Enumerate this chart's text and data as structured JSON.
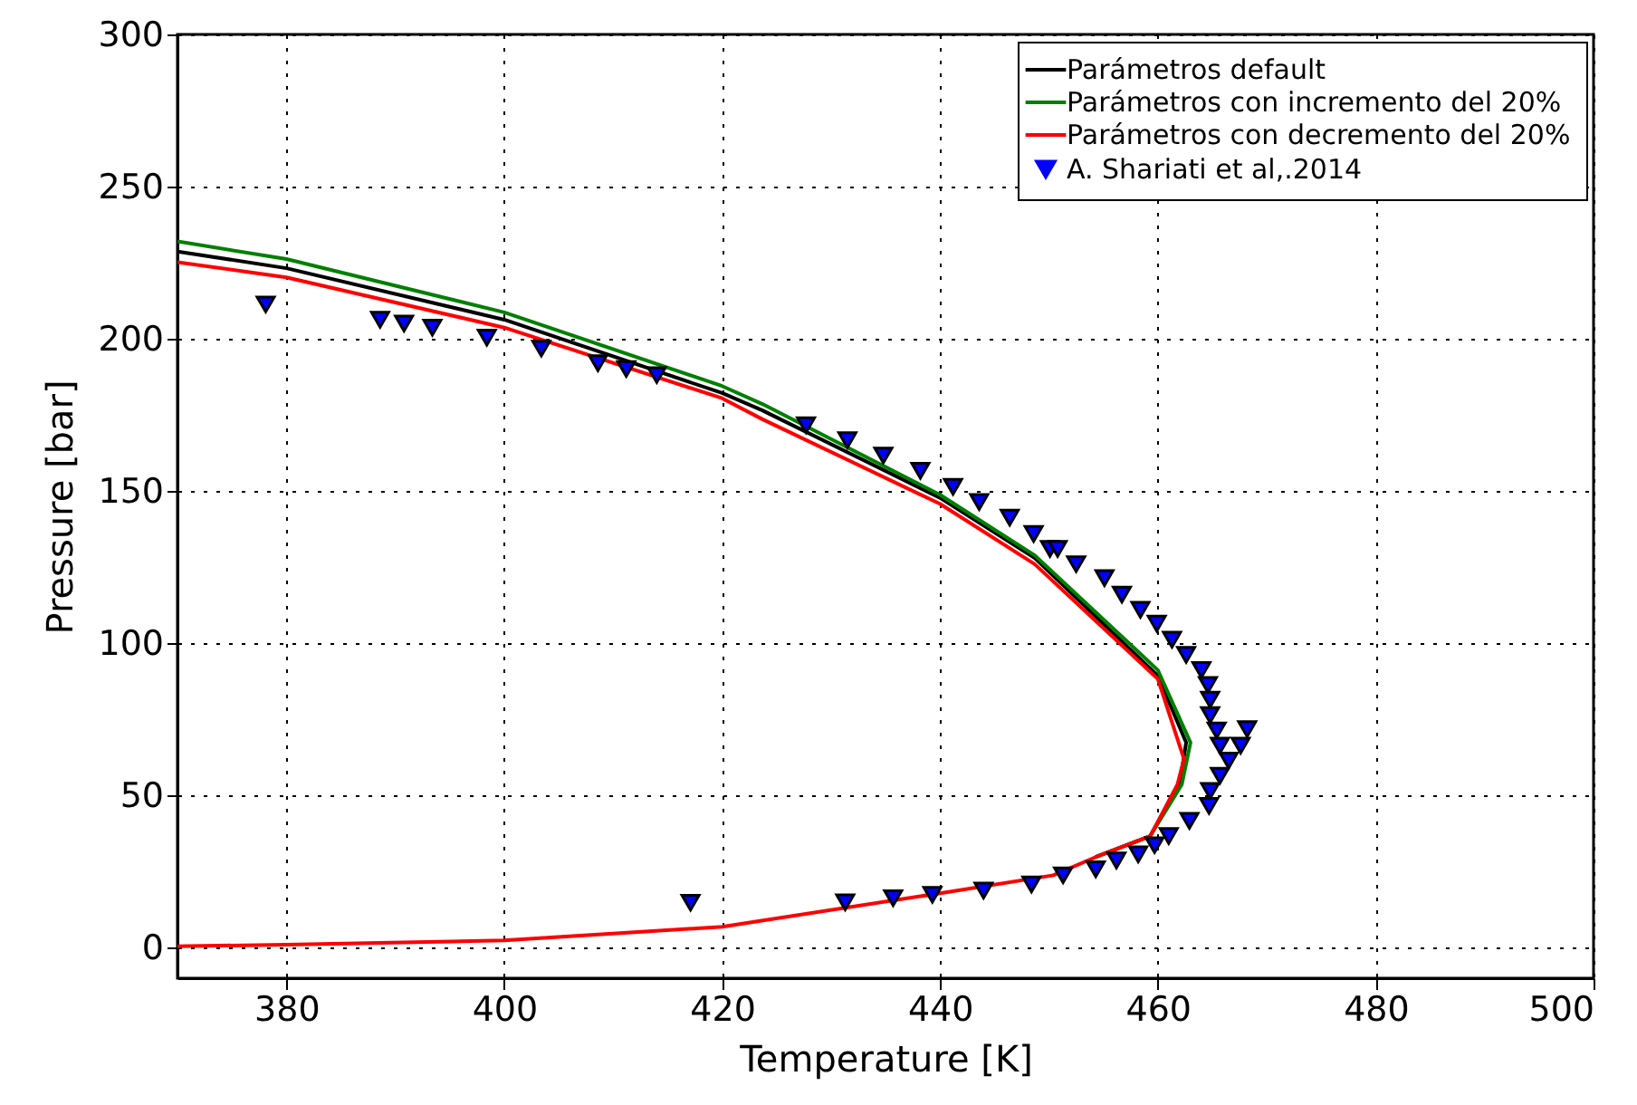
{
  "chart_data": {
    "type": "line",
    "xlabel": "Temperature [K]",
    "ylabel": "Pressure [bar]",
    "xlim": [
      370,
      500
    ],
    "ylim": [
      -10,
      300
    ],
    "xticks": [
      380,
      400,
      420,
      440,
      460,
      480,
      500
    ],
    "yticks": [
      0,
      50,
      100,
      150,
      200,
      250,
      300
    ],
    "grid": true,
    "legend": "top right",
    "series": [
      {
        "name": "Parámetros default",
        "color": "#000000",
        "x": [
          370,
          380,
          400,
          420,
          423.7,
          440,
          448.7,
          460,
          462.6,
          462,
          459.3,
          454.3
        ],
        "values": [
          228.7,
          223.2,
          206.3,
          182.2,
          176.5,
          147.8,
          128,
          89.3,
          67.4,
          53.6,
          36.7,
          29.8
        ]
      },
      {
        "name": "Parámetros con incremento del 20%",
        "color": "#008000",
        "x": [
          370,
          380,
          400,
          420,
          423.7,
          440,
          448.7,
          460,
          463,
          462.2,
          459.3,
          454.3
        ],
        "values": [
          232,
          226.2,
          208.7,
          184.5,
          178.6,
          148.8,
          128.9,
          91.2,
          67.4,
          53.6,
          36.7,
          29.8
        ]
      },
      {
        "name": "Parámetros con decremento del 20%",
        "color": "#ff0000",
        "x": [
          370,
          380,
          400,
          420,
          423.7,
          440,
          448.7,
          460,
          462.4,
          461.8,
          459.3,
          454.3,
          450.4,
          440,
          420,
          400,
          380,
          370
        ],
        "values": [
          225.2,
          220.2,
          203.7,
          180.5,
          173.6,
          145.8,
          126,
          88.3,
          62,
          53.6,
          36.7,
          29.8,
          23.8,
          17.9,
          6.9,
          2.4,
          1.0,
          0.5
        ]
      },
      {
        "name": "A. Shariati et al,.2014",
        "type": "scatter",
        "marker": "triangle",
        "color": "#0000ff",
        "x": [
          378.1,
          388.6,
          390.8,
          393.4,
          398.4,
          403.4,
          408.6,
          411.2,
          414,
          427.7,
          431.5,
          434.8,
          438.2,
          441.2,
          443.6,
          446.4,
          448.6,
          450.1,
          450.8,
          452.5,
          455.1,
          456.7,
          458.4,
          459.9,
          461.3,
          462.6,
          464,
          464.6,
          464.8,
          464.8,
          465.4,
          465.7,
          468.2,
          467.6,
          466.5,
          465.7,
          464.8,
          464.7,
          462.9,
          461,
          459.7,
          458.2,
          456.2,
          454.3,
          451.3,
          448.4,
          444,
          439.3,
          435.7,
          431.3,
          417.1
        ],
        "values": [
          211.3,
          206.3,
          205,
          203.7,
          200.4,
          196.8,
          192,
          190.1,
          188.1,
          171.6,
          166.7,
          161.7,
          156.7,
          151.4,
          146.4,
          141.3,
          135.9,
          131,
          131,
          126,
          121.4,
          116,
          111,
          106.5,
          101.2,
          96.2,
          91.2,
          86.3,
          81.5,
          76.4,
          71.4,
          66.4,
          71.8,
          66.4,
          61.5,
          56.5,
          51.5,
          46.6,
          41.7,
          36.7,
          33.7,
          30.7,
          28.7,
          25.8,
          23.8,
          20.8,
          18.8,
          17.4,
          16.3,
          14.9,
          14.8
        ]
      }
    ]
  }
}
